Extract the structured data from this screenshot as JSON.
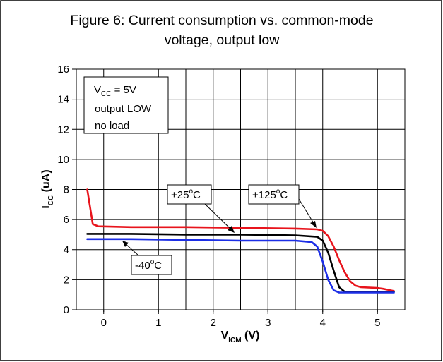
{
  "chart_data": {
    "type": "line",
    "title": "Figure 6: Current consumption vs. common-mode voltage, output low",
    "title_lines": [
      "Figure 6: Current consumption vs. common-mode",
      "voltage, output low"
    ],
    "xlabel": {
      "main": "V",
      "sub": "ICM",
      "unit": " (V)"
    },
    "ylabel": {
      "main": "I",
      "sub": "CC",
      "unit": " (uA)"
    },
    "xlim": [
      -0.5,
      5.5
    ],
    "ylim": [
      0,
      16
    ],
    "x_ticks": [
      0,
      1,
      2,
      3,
      4,
      5
    ],
    "y_ticks": [
      0,
      2,
      4,
      6,
      8,
      10,
      12,
      14,
      16
    ],
    "grid": true,
    "conditions": {
      "line1": {
        "main": "V",
        "sub": "CC",
        "rest": " = 5V"
      },
      "line2": "output LOW",
      "line3": "no load"
    },
    "series": [
      {
        "name": "+125°C",
        "label": {
          "main": "+125",
          "sup": "o",
          "rest": "C"
        },
        "color": "#e8141c",
        "points": [
          [
            -0.3,
            8.0
          ],
          [
            -0.2,
            5.7
          ],
          [
            -0.1,
            5.55
          ],
          [
            0.5,
            5.5
          ],
          [
            1.5,
            5.5
          ],
          [
            2.5,
            5.45
          ],
          [
            3.5,
            5.4
          ],
          [
            3.9,
            5.35
          ],
          [
            4.0,
            5.25
          ],
          [
            4.1,
            4.9
          ],
          [
            4.2,
            4.2
          ],
          [
            4.3,
            3.3
          ],
          [
            4.4,
            2.5
          ],
          [
            4.5,
            1.9
          ],
          [
            4.6,
            1.6
          ],
          [
            4.7,
            1.5
          ],
          [
            5.0,
            1.45
          ],
          [
            5.1,
            1.4
          ],
          [
            5.3,
            1.25
          ]
        ]
      },
      {
        "name": "+25°C",
        "label": {
          "main": "+25",
          "sup": "o",
          "rest": "C"
        },
        "color": "#000000",
        "points": [
          [
            -0.3,
            5.05
          ],
          [
            0.5,
            5.05
          ],
          [
            1.5,
            5.0
          ],
          [
            2.5,
            5.0
          ],
          [
            3.5,
            4.95
          ],
          [
            3.9,
            4.85
          ],
          [
            4.0,
            4.6
          ],
          [
            4.1,
            3.8
          ],
          [
            4.2,
            2.6
          ],
          [
            4.3,
            1.5
          ],
          [
            4.4,
            1.2
          ],
          [
            4.6,
            1.2
          ],
          [
            5.3,
            1.2
          ]
        ]
      },
      {
        "name": "-40°C",
        "label": {
          "main": "-40",
          "sup": "o",
          "rest": "C"
        },
        "color": "#1c2ee6",
        "points": [
          [
            -0.3,
            4.7
          ],
          [
            0.5,
            4.7
          ],
          [
            1.5,
            4.65
          ],
          [
            2.5,
            4.6
          ],
          [
            3.5,
            4.6
          ],
          [
            3.8,
            4.5
          ],
          [
            3.9,
            4.2
          ],
          [
            4.0,
            3.2
          ],
          [
            4.1,
            2.0
          ],
          [
            4.2,
            1.3
          ],
          [
            4.3,
            1.15
          ],
          [
            5.3,
            1.15
          ]
        ]
      }
    ]
  }
}
